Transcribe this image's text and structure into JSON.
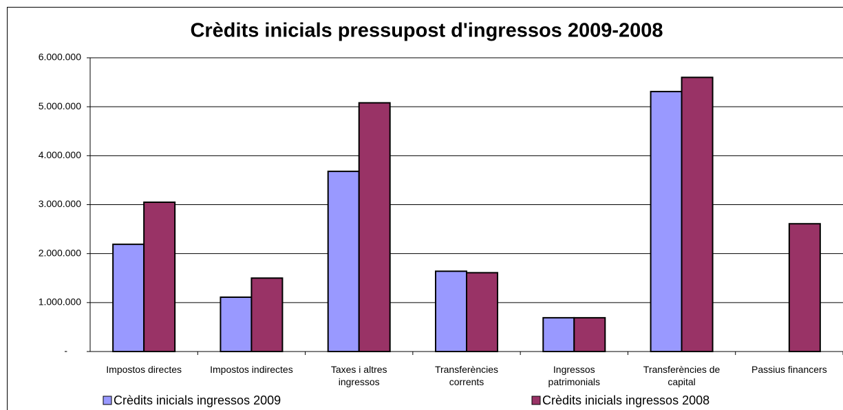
{
  "chart_data": {
    "type": "bar",
    "title": "Crèdits inicials pressupost d'ingressos 2009-2008",
    "categories": [
      "Impostos directes",
      "Impostos indirectes",
      "Taxes i altres ingressos",
      "Transferències corrents",
      "Ingressos patrimonials",
      "Transferències de capital",
      "Passius financers"
    ],
    "series": [
      {
        "name": "Crèdits inicials ingressos 2009",
        "color": "#9999ff",
        "values": [
          2190000,
          1110000,
          3680000,
          1640000,
          690000,
          5310000,
          0
        ]
      },
      {
        "name": "Crèdits inicials ingressos 2008",
        "color": "#993366",
        "values": [
          3050000,
          1500000,
          5080000,
          1610000,
          690000,
          5600000,
          2610000
        ]
      }
    ],
    "ylim": [
      0,
      6000000
    ],
    "yticks": [
      {
        "value": 0,
        "label": "-"
      },
      {
        "value": 1000000,
        "label": "1.000.000"
      },
      {
        "value": 2000000,
        "label": "2.000.000"
      },
      {
        "value": 3000000,
        "label": "3.000.000"
      },
      {
        "value": 4000000,
        "label": "4.000.000"
      },
      {
        "value": 5000000,
        "label": "5.000.000"
      },
      {
        "value": 6000000,
        "label": "6.000.000"
      }
    ],
    "grid": true
  }
}
